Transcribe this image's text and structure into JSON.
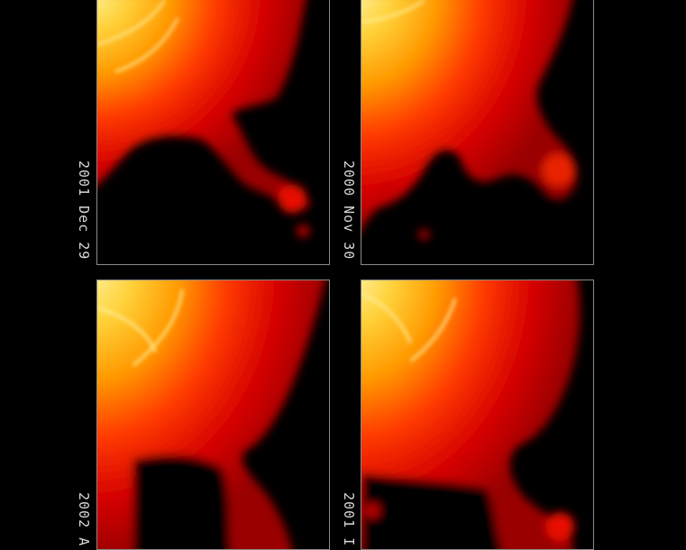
{
  "colors": {
    "background": "#000000",
    "core": "#ffe45a",
    "mid": "#ff9a00",
    "outer": "#d40000",
    "frame": "#8a8a8a",
    "label": "#d8d8d8"
  },
  "panels": [
    {
      "position": "top-left",
      "date": "2001 Dec 29"
    },
    {
      "position": "top-right",
      "date": "2000 Nov 30"
    },
    {
      "position": "bottom-left",
      "date": "2002 A"
    },
    {
      "position": "bottom-right",
      "date": "2001 I"
    }
  ]
}
